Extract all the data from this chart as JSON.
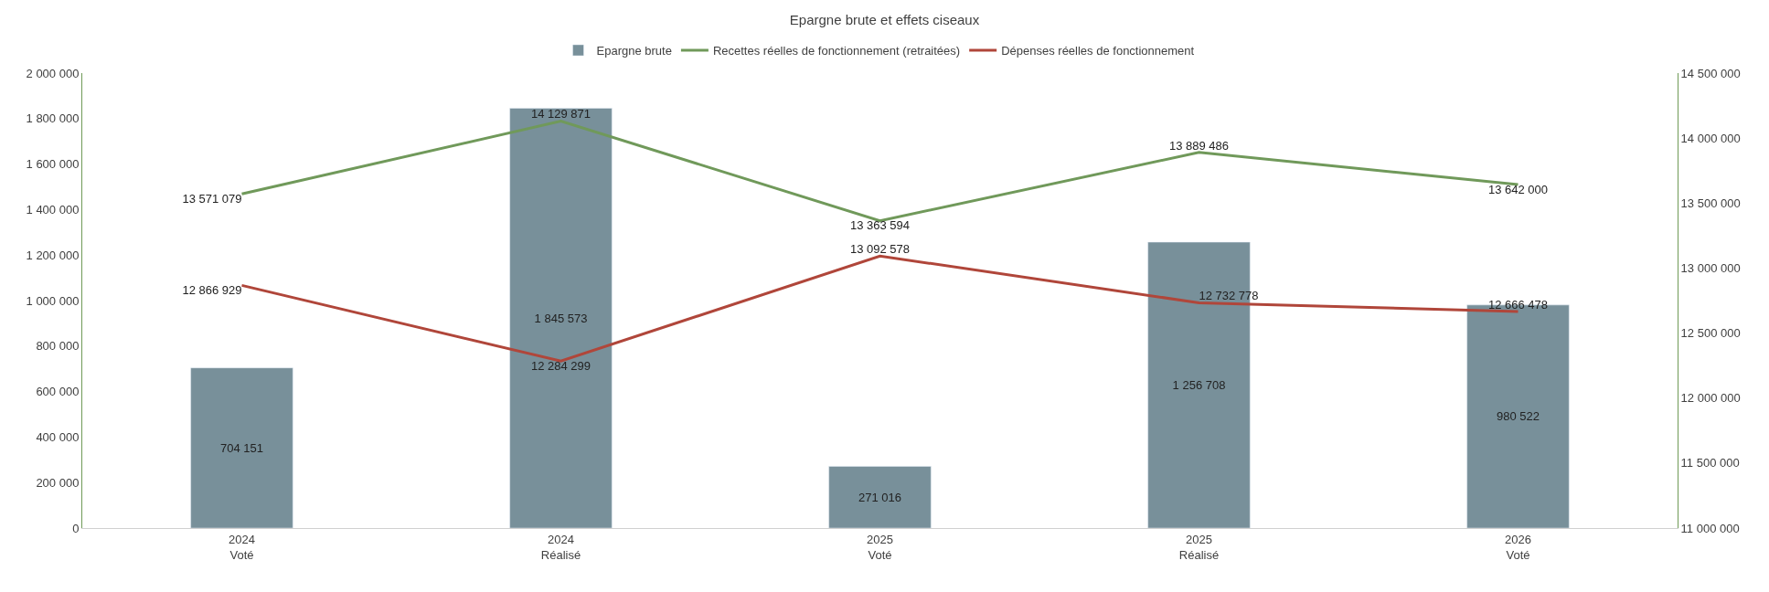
{
  "chart_data": {
    "type": "bar",
    "title": "Epargne brute et effets ciseaux",
    "categories": [
      "2024\nVoté",
      "2024\nRéalisé",
      "2025\nVoté",
      "2025\nRéalisé",
      "2026\nVoté"
    ],
    "series": [
      {
        "name": "Epargne brute",
        "color": "#78909a",
        "values": [
          704151,
          1845573,
          271016,
          1256708,
          980522
        ],
        "value_labels": [
          "704 151",
          "1 845 573",
          "271 016",
          "1 256 708",
          "980 522"
        ]
      },
      {
        "name": "Recettes réelles de fonctionnement (retraitées)",
        "type": "line",
        "axis": "y2",
        "color": "#70995a",
        "values": [
          13571079,
          14129871,
          13363594,
          13889486,
          13642000
        ],
        "value_labels": [
          "13 571 079",
          "14 129 871",
          "13 363 594",
          "13 889 486",
          "13 642 000"
        ]
      },
      {
        "name": "Dépenses réelles de fonctionnement",
        "type": "line",
        "axis": "y2",
        "color": "#b0463a",
        "values": [
          12866929,
          12284299,
          13092578,
          12732778,
          12666478
        ],
        "value_labels": [
          "12 866 929",
          "12 284 299",
          "13 092 578",
          "12 732 778",
          "12 666 478"
        ]
      }
    ],
    "ylim": [
      0,
      2000000
    ],
    "yticks": [
      {
        "value": 0,
        "label": "0"
      },
      {
        "value": 200000,
        "label": "200 000"
      },
      {
        "value": 400000,
        "label": "400 000"
      },
      {
        "value": 600000,
        "label": "600 000"
      },
      {
        "value": 800000,
        "label": "800 000"
      },
      {
        "value": 1000000,
        "label": "1 000 000"
      },
      {
        "value": 1200000,
        "label": "1 200 000"
      },
      {
        "value": 1400000,
        "label": "1 400 000"
      },
      {
        "value": 1600000,
        "label": "1 600 000"
      },
      {
        "value": 1800000,
        "label": "1 800 000"
      },
      {
        "value": 2000000,
        "label": "2 000 000"
      }
    ],
    "y2lim": [
      11000000,
      14500000
    ],
    "y2ticks": [
      {
        "value": 11000000,
        "label": "11 000 000"
      },
      {
        "value": 11500000,
        "label": "11 500 000"
      },
      {
        "value": 12000000,
        "label": "12 000 000"
      },
      {
        "value": 12500000,
        "label": "12 500 000"
      },
      {
        "value": 13000000,
        "label": "13 000 000"
      },
      {
        "value": 13500000,
        "label": "13 500 000"
      },
      {
        "value": 14000000,
        "label": "14 000 000"
      },
      {
        "value": 14500000,
        "label": "14 500 000"
      }
    ],
    "grid": false,
    "legend": "top",
    "marker": "none",
    "line_style": "solid"
  }
}
